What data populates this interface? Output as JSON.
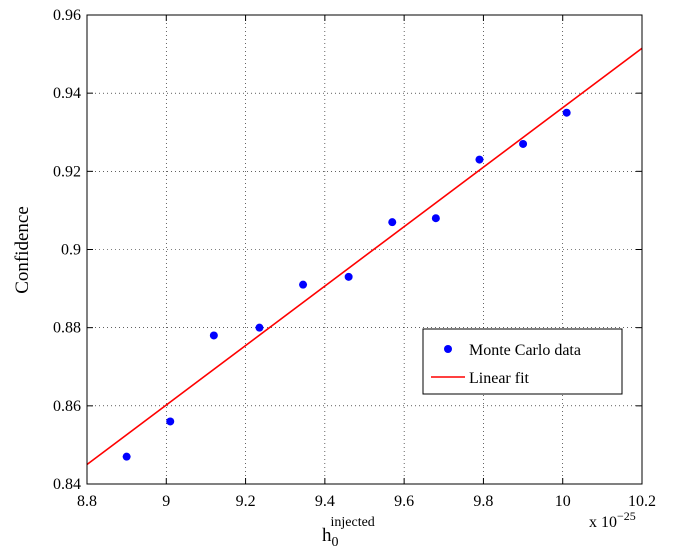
{
  "chart_data": {
    "type": "scatter",
    "xlabel": {
      "base": "h",
      "sub": "0",
      "sup": "injected"
    },
    "ylabel": "Confidence",
    "x_multiplier": {
      "prefix": "x 10",
      "exponent": "−25"
    },
    "xlim": [
      8.8,
      10.2
    ],
    "ylim": [
      0.84,
      0.96
    ],
    "x_ticks": [
      "8.8",
      "9",
      "9.2",
      "9.4",
      "9.6",
      "9.8",
      "10",
      "10.2"
    ],
    "y_ticks": [
      "0.84",
      "0.86",
      "0.88",
      "0.9",
      "0.92",
      "0.94",
      "0.96"
    ],
    "grid": true,
    "legend_position": "lower-right",
    "series": [
      {
        "name": "Monte Carlo data",
        "kind": "points",
        "color": "#0000ff",
        "x": [
          8.9,
          9.01,
          9.12,
          9.235,
          9.345,
          9.46,
          9.57,
          9.68,
          9.79,
          9.9,
          10.01
        ],
        "y": [
          0.847,
          0.856,
          0.878,
          0.88,
          0.891,
          0.893,
          0.907,
          0.908,
          0.923,
          0.927,
          0.935
        ]
      },
      {
        "name": "Linear fit",
        "kind": "line",
        "color": "#ff0000",
        "x": [
          8.8,
          10.2
        ],
        "y": [
          0.845,
          0.9515
        ]
      }
    ]
  }
}
